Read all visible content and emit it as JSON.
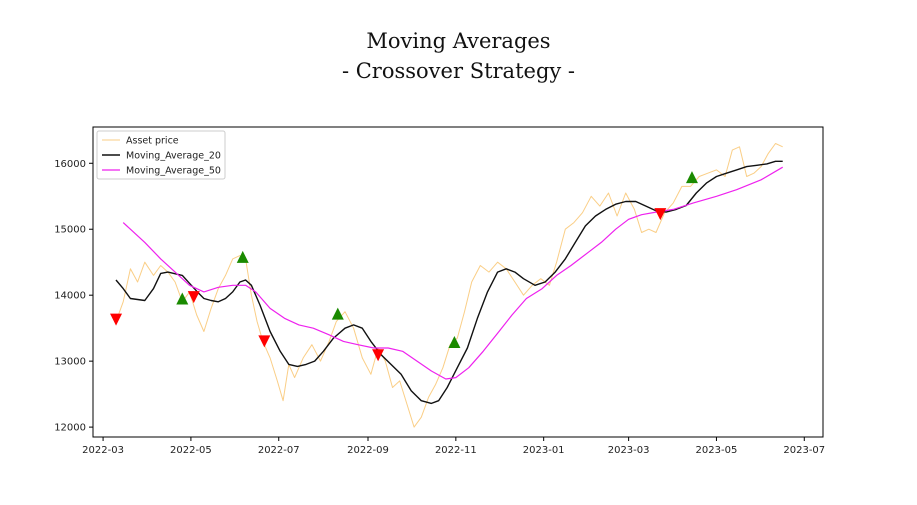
{
  "chart_data": {
    "type": "line",
    "title": "Moving Averages",
    "subtitle": "- Crossover Strategy -",
    "xlabel": "",
    "ylabel": "",
    "x_ticks": [
      "2022-03",
      "2022-05",
      "2022-07",
      "2022-09",
      "2022-11",
      "2023-01",
      "2023-03",
      "2023-05",
      "2023-07"
    ],
    "y_ticks": [
      12000,
      13000,
      14000,
      15000,
      16000
    ],
    "xlim": [
      "2022-02-22",
      "2023-07-14"
    ],
    "ylim": [
      11850,
      16550
    ],
    "grid": false,
    "legend_position": "top-left",
    "series": [
      {
        "name": "Asset price",
        "color": "#f5a623",
        "points": [
          [
            "2022-03-10",
            13600
          ],
          [
            "2022-03-15",
            13900
          ],
          [
            "2022-03-20",
            14400
          ],
          [
            "2022-03-25",
            14200
          ],
          [
            "2022-03-30",
            14500
          ],
          [
            "2022-04-05",
            14300
          ],
          [
            "2022-04-10",
            14450
          ],
          [
            "2022-04-15",
            14350
          ],
          [
            "2022-04-20",
            14200
          ],
          [
            "2022-04-25",
            13900
          ],
          [
            "2022-04-30",
            14050
          ],
          [
            "2022-05-05",
            13700
          ],
          [
            "2022-05-10",
            13450
          ],
          [
            "2022-05-15",
            13800
          ],
          [
            "2022-05-20",
            14100
          ],
          [
            "2022-05-25",
            14300
          ],
          [
            "2022-05-30",
            14550
          ],
          [
            "2022-06-04",
            14600
          ],
          [
            "2022-06-08",
            14550
          ],
          [
            "2022-06-12",
            14000
          ],
          [
            "2022-06-16",
            13600
          ],
          [
            "2022-06-20",
            13300
          ],
          [
            "2022-06-25",
            13050
          ],
          [
            "2022-06-30",
            12700
          ],
          [
            "2022-07-04",
            12400
          ],
          [
            "2022-07-08",
            12950
          ],
          [
            "2022-07-12",
            12750
          ],
          [
            "2022-07-18",
            13050
          ],
          [
            "2022-07-24",
            13250
          ],
          [
            "2022-07-30",
            13000
          ],
          [
            "2022-08-05",
            13300
          ],
          [
            "2022-08-10",
            13600
          ],
          [
            "2022-08-16",
            13750
          ],
          [
            "2022-08-22",
            13500
          ],
          [
            "2022-08-28",
            13050
          ],
          [
            "2022-09-03",
            12800
          ],
          [
            "2022-09-08",
            13200
          ],
          [
            "2022-09-13",
            13000
          ],
          [
            "2022-09-18",
            12600
          ],
          [
            "2022-09-23",
            12700
          ],
          [
            "2022-09-28",
            12350
          ],
          [
            "2022-10-03",
            12000
          ],
          [
            "2022-10-08",
            12150
          ],
          [
            "2022-10-13",
            12450
          ],
          [
            "2022-10-18",
            12650
          ],
          [
            "2022-10-23",
            12900
          ],
          [
            "2022-10-28",
            13250
          ],
          [
            "2022-11-02",
            13350
          ],
          [
            "2022-11-07",
            13750
          ],
          [
            "2022-11-12",
            14200
          ],
          [
            "2022-11-18",
            14450
          ],
          [
            "2022-11-24",
            14350
          ],
          [
            "2022-11-30",
            14500
          ],
          [
            "2022-12-06",
            14400
          ],
          [
            "2022-12-12",
            14200
          ],
          [
            "2022-12-18",
            14000
          ],
          [
            "2022-12-24",
            14150
          ],
          [
            "2022-12-30",
            14250
          ],
          [
            "2023-01-05",
            14150
          ],
          [
            "2023-01-10",
            14500
          ],
          [
            "2023-01-16",
            15000
          ],
          [
            "2023-01-22",
            15100
          ],
          [
            "2023-01-28",
            15250
          ],
          [
            "2023-02-03",
            15500
          ],
          [
            "2023-02-09",
            15350
          ],
          [
            "2023-02-15",
            15550
          ],
          [
            "2023-02-21",
            15200
          ],
          [
            "2023-02-27",
            15550
          ],
          [
            "2023-03-05",
            15300
          ],
          [
            "2023-03-10",
            14950
          ],
          [
            "2023-03-15",
            15000
          ],
          [
            "2023-03-20",
            14950
          ],
          [
            "2023-03-26",
            15250
          ],
          [
            "2023-04-01",
            15400
          ],
          [
            "2023-04-07",
            15650
          ],
          [
            "2023-04-13",
            15650
          ],
          [
            "2023-04-19",
            15800
          ],
          [
            "2023-04-25",
            15850
          ],
          [
            "2023-05-01",
            15900
          ],
          [
            "2023-05-07",
            15800
          ],
          [
            "2023-05-12",
            16200
          ],
          [
            "2023-05-17",
            16250
          ],
          [
            "2023-05-22",
            15800
          ],
          [
            "2023-05-27",
            15850
          ],
          [
            "2023-06-01",
            15950
          ],
          [
            "2023-06-06",
            16150
          ],
          [
            "2023-06-11",
            16300
          ],
          [
            "2023-06-16",
            16250
          ]
        ]
      },
      {
        "name": "Moving_Average_20",
        "color": "#111111",
        "points": [
          [
            "2022-03-10",
            14230
          ],
          [
            "2022-03-15",
            14100
          ],
          [
            "2022-03-20",
            13950
          ],
          [
            "2022-03-30",
            13920
          ],
          [
            "2022-04-05",
            14100
          ],
          [
            "2022-04-10",
            14330
          ],
          [
            "2022-04-15",
            14350
          ],
          [
            "2022-04-25",
            14300
          ],
          [
            "2022-04-30",
            14180
          ],
          [
            "2022-05-05",
            14060
          ],
          [
            "2022-05-10",
            13950
          ],
          [
            "2022-05-15",
            13920
          ],
          [
            "2022-05-20",
            13900
          ],
          [
            "2022-05-25",
            13950
          ],
          [
            "2022-05-30",
            14050
          ],
          [
            "2022-06-04",
            14200
          ],
          [
            "2022-06-08",
            14230
          ],
          [
            "2022-06-12",
            14150
          ],
          [
            "2022-06-18",
            13850
          ],
          [
            "2022-06-25",
            13450
          ],
          [
            "2022-07-02",
            13150
          ],
          [
            "2022-07-08",
            12950
          ],
          [
            "2022-07-14",
            12920
          ],
          [
            "2022-07-20",
            12950
          ],
          [
            "2022-07-26",
            13000
          ],
          [
            "2022-08-01",
            13150
          ],
          [
            "2022-08-08",
            13350
          ],
          [
            "2022-08-16",
            13500
          ],
          [
            "2022-08-22",
            13550
          ],
          [
            "2022-08-28",
            13500
          ],
          [
            "2022-09-03",
            13300
          ],
          [
            "2022-09-10",
            13100
          ],
          [
            "2022-09-17",
            12950
          ],
          [
            "2022-09-24",
            12800
          ],
          [
            "2022-10-01",
            12550
          ],
          [
            "2022-10-08",
            12400
          ],
          [
            "2022-10-15",
            12360
          ],
          [
            "2022-10-20",
            12400
          ],
          [
            "2022-10-26",
            12600
          ],
          [
            "2022-11-02",
            12900
          ],
          [
            "2022-11-09",
            13200
          ],
          [
            "2022-11-16",
            13650
          ],
          [
            "2022-11-23",
            14050
          ],
          [
            "2022-11-30",
            14350
          ],
          [
            "2022-12-06",
            14400
          ],
          [
            "2022-12-12",
            14350
          ],
          [
            "2022-12-18",
            14250
          ],
          [
            "2022-12-26",
            14150
          ],
          [
            "2023-01-02",
            14200
          ],
          [
            "2023-01-09",
            14350
          ],
          [
            "2023-01-16",
            14550
          ],
          [
            "2023-01-23",
            14800
          ],
          [
            "2023-01-30",
            15050
          ],
          [
            "2023-02-06",
            15200
          ],
          [
            "2023-02-13",
            15300
          ],
          [
            "2023-02-20",
            15380
          ],
          [
            "2023-02-27",
            15420
          ],
          [
            "2023-03-06",
            15420
          ],
          [
            "2023-03-13",
            15350
          ],
          [
            "2023-03-20",
            15280
          ],
          [
            "2023-03-27",
            15260
          ],
          [
            "2023-04-03",
            15300
          ],
          [
            "2023-04-10",
            15360
          ],
          [
            "2023-04-17",
            15550
          ],
          [
            "2023-04-24",
            15700
          ],
          [
            "2023-05-01",
            15800
          ],
          [
            "2023-05-08",
            15850
          ],
          [
            "2023-05-15",
            15900
          ],
          [
            "2023-05-22",
            15950
          ],
          [
            "2023-05-29",
            15970
          ],
          [
            "2023-06-05",
            15990
          ],
          [
            "2023-06-11",
            16030
          ],
          [
            "2023-06-16",
            16030
          ]
        ]
      },
      {
        "name": "Moving_Average_50",
        "color": "#ee22ee",
        "points": [
          [
            "2022-03-15",
            15100
          ],
          [
            "2022-03-20",
            15000
          ],
          [
            "2022-03-30",
            14800
          ],
          [
            "2022-04-10",
            14550
          ],
          [
            "2022-04-20",
            14350
          ],
          [
            "2022-04-30",
            14150
          ],
          [
            "2022-05-10",
            14050
          ],
          [
            "2022-05-20",
            14120
          ],
          [
            "2022-05-30",
            14150
          ],
          [
            "2022-06-08",
            14150
          ],
          [
            "2022-06-15",
            14050
          ],
          [
            "2022-06-25",
            13800
          ],
          [
            "2022-07-05",
            13650
          ],
          [
            "2022-07-15",
            13550
          ],
          [
            "2022-07-25",
            13500
          ],
          [
            "2022-08-05",
            13400
          ],
          [
            "2022-08-15",
            13300
          ],
          [
            "2022-08-25",
            13250
          ],
          [
            "2022-09-05",
            13200
          ],
          [
            "2022-09-15",
            13200
          ],
          [
            "2022-09-25",
            13150
          ],
          [
            "2022-10-05",
            13000
          ],
          [
            "2022-10-15",
            12850
          ],
          [
            "2022-10-25",
            12730
          ],
          [
            "2022-11-01",
            12750
          ],
          [
            "2022-11-10",
            12900
          ],
          [
            "2022-11-20",
            13150
          ],
          [
            "2022-12-01",
            13450
          ],
          [
            "2022-12-10",
            13700
          ],
          [
            "2022-12-20",
            13950
          ],
          [
            "2022-12-31",
            14100
          ],
          [
            "2023-01-10",
            14300
          ],
          [
            "2023-01-20",
            14450
          ],
          [
            "2023-02-01",
            14650
          ],
          [
            "2023-02-10",
            14800
          ],
          [
            "2023-02-20",
            15000
          ],
          [
            "2023-03-01",
            15150
          ],
          [
            "2023-03-10",
            15220
          ],
          [
            "2023-03-20",
            15260
          ],
          [
            "2023-04-01",
            15300
          ],
          [
            "2023-04-15",
            15400
          ],
          [
            "2023-05-01",
            15500
          ],
          [
            "2023-05-15",
            15600
          ],
          [
            "2023-06-01",
            15750
          ],
          [
            "2023-06-16",
            15940
          ]
        ]
      }
    ],
    "signals": [
      {
        "type": "sell",
        "date": "2022-03-10",
        "value": 13630,
        "color": "#ff0000"
      },
      {
        "type": "buy",
        "date": "2022-04-25",
        "value": 13950,
        "color": "#1a8a00"
      },
      {
        "type": "sell",
        "date": "2022-05-03",
        "value": 13970,
        "color": "#ff0000"
      },
      {
        "type": "buy",
        "date": "2022-06-06",
        "value": 14580,
        "color": "#1a8a00"
      },
      {
        "type": "sell",
        "date": "2022-06-21",
        "value": 13300,
        "color": "#ff0000"
      },
      {
        "type": "buy",
        "date": "2022-08-11",
        "value": 13720,
        "color": "#1a8a00"
      },
      {
        "type": "sell",
        "date": "2022-09-08",
        "value": 13090,
        "color": "#ff0000"
      },
      {
        "type": "buy",
        "date": "2022-10-31",
        "value": 13290,
        "color": "#1a8a00"
      },
      {
        "type": "sell",
        "date": "2023-03-23",
        "value": 15230,
        "color": "#ff0000"
      },
      {
        "type": "buy",
        "date": "2023-04-14",
        "value": 15790,
        "color": "#1a8a00"
      }
    ]
  }
}
